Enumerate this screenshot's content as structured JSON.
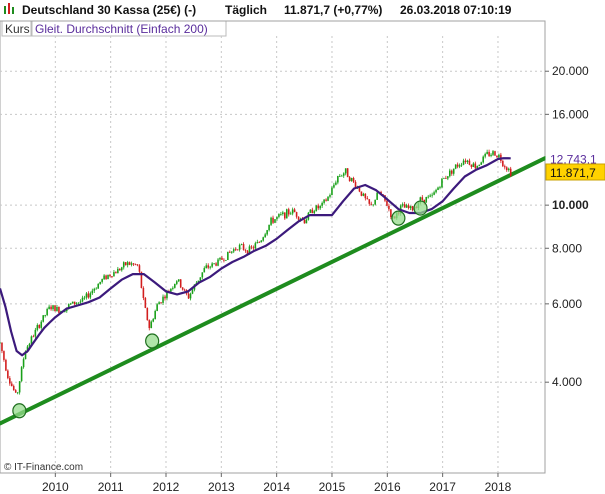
{
  "header": {
    "instrument": "Deutschland 30 Kassa (25€) (-)",
    "interval": "Täglich",
    "quote": "11.871,7 (+0,77%)",
    "datetime": "26.03.2018 07:10:19"
  },
  "legend": {
    "kurs_label": "Kurs",
    "sma_label": "Gleit. Durchschnitt (Einfach 200)"
  },
  "watermark": "© IT-Finance.com",
  "colors": {
    "price_up": "#19a019",
    "price_down": "#d21e1e",
    "sma": "#3c1a7c",
    "trendline": "#1e8c1e",
    "last_price_bg": "#ffd200",
    "grid": "#c8c8c8"
  },
  "chart_data": {
    "type": "line",
    "title": "Deutschland 30 Kassa (25€) (-)",
    "y_scale": "log",
    "ylim": [
      2500,
      24000
    ],
    "y_ticks": [
      {
        "value": 4000,
        "label": "4.000"
      },
      {
        "value": 6000,
        "label": "6.000"
      },
      {
        "value": 8000,
        "label": "8.000"
      },
      {
        "value": 10000,
        "label": "10.000"
      },
      {
        "value": 16000,
        "label": "16.000"
      },
      {
        "value": 20000,
        "label": "20.000"
      }
    ],
    "xlim": [
      2009.0,
      2018.85
    ],
    "x_ticks": [
      {
        "value": 2010,
        "label": "2010"
      },
      {
        "value": 2011,
        "label": "2011"
      },
      {
        "value": 2012,
        "label": "2012"
      },
      {
        "value": 2013,
        "label": "2013"
      },
      {
        "value": 2014,
        "label": "2014"
      },
      {
        "value": 2015,
        "label": "2015"
      },
      {
        "value": 2016,
        "label": "2016"
      },
      {
        "value": 2017,
        "label": "2017"
      },
      {
        "value": 2018,
        "label": "2018"
      }
    ],
    "grid": true,
    "series": [
      {
        "name": "Kurs",
        "style": "candlestick",
        "x": [
          2009.0,
          2009.15,
          2009.3,
          2009.45,
          2009.6,
          2009.75,
          2009.9,
          2010.1,
          2010.3,
          2010.5,
          2010.7,
          2010.9,
          2011.1,
          2011.3,
          2011.5,
          2011.6,
          2011.7,
          2011.85,
          2012.0,
          2012.2,
          2012.4,
          2012.55,
          2012.7,
          2012.9,
          2013.1,
          2013.3,
          2013.5,
          2013.7,
          2013.9,
          2014.1,
          2014.3,
          2014.5,
          2014.65,
          2014.8,
          2014.95,
          2015.1,
          2015.25,
          2015.35,
          2015.5,
          2015.6,
          2015.7,
          2015.85,
          2016.0,
          2016.1,
          2016.25,
          2016.45,
          2016.6,
          2016.8,
          2017.0,
          2017.2,
          2017.4,
          2017.6,
          2017.8,
          2017.9,
          2018.0,
          2018.1,
          2018.23
        ],
        "values": [
          4900,
          4100,
          3700,
          4700,
          5100,
          5500,
          5900,
          5800,
          6000,
          6100,
          6500,
          6900,
          7100,
          7400,
          7300,
          6000,
          5300,
          6000,
          6300,
          6800,
          6200,
          6700,
          7200,
          7400,
          7700,
          8100,
          7900,
          8300,
          9200,
          9500,
          9700,
          9200,
          9800,
          9900,
          10500,
          11600,
          11900,
          11400,
          10800,
          10300,
          9900,
          10700,
          10000,
          9300,
          9900,
          9800,
          10300,
          10400,
          11400,
          12100,
          12700,
          12200,
          13000,
          13100,
          13000,
          12400,
          11872
        ]
      },
      {
        "name": "Gleit. Durchschnitt (Einfach 200)",
        "style": "line",
        "x": [
          2009.0,
          2009.1,
          2009.2,
          2009.3,
          2009.4,
          2009.5,
          2009.6,
          2009.7,
          2009.8,
          2009.9,
          2010.0,
          2010.2,
          2010.4,
          2010.6,
          2010.8,
          2011.0,
          2011.2,
          2011.4,
          2011.6,
          2011.8,
          2012.0,
          2012.2,
          2012.4,
          2012.6,
          2012.8,
          2013.0,
          2013.2,
          2013.4,
          2013.6,
          2013.8,
          2014.0,
          2014.2,
          2014.4,
          2014.6,
          2014.8,
          2015.0,
          2015.2,
          2015.4,
          2015.6,
          2015.8,
          2016.0,
          2016.2,
          2016.4,
          2016.6,
          2016.8,
          2017.0,
          2017.2,
          2017.4,
          2017.6,
          2017.8,
          2018.0,
          2018.1,
          2018.23
        ],
        "values": [
          6500,
          5900,
          5200,
          4700,
          4600,
          4700,
          4900,
          5100,
          5300,
          5450,
          5600,
          5850,
          5950,
          6050,
          6200,
          6500,
          6800,
          7000,
          7000,
          6700,
          6400,
          6300,
          6400,
          6700,
          6900,
          7200,
          7450,
          7650,
          7900,
          8100,
          8400,
          8800,
          9200,
          9500,
          9500,
          9500,
          10200,
          10900,
          11100,
          10800,
          10300,
          9800,
          9600,
          9600,
          9800,
          10200,
          10900,
          11600,
          12000,
          12300,
          12700,
          12750,
          12743
        ]
      },
      {
        "name": "Trendlinie",
        "style": "line",
        "x": [
          2009.0,
          2018.85
        ],
        "values": [
          3230,
          12750
        ]
      }
    ],
    "annotations": [
      {
        "type": "support-touch",
        "x": 2009.35,
        "value": 3450
      },
      {
        "type": "support-touch",
        "x": 2011.75,
        "value": 4950
      },
      {
        "type": "support-touch",
        "x": 2016.2,
        "value": 9350
      },
      {
        "type": "support-touch",
        "x": 2016.6,
        "value": 9850
      }
    ],
    "last_value_labels": [
      {
        "series": "Gleit. Durchschnitt (Einfach 200)",
        "value": 12743.1,
        "label": "12.743,1"
      },
      {
        "series": "Kurs",
        "value": 11871.7,
        "label": "11.871,7"
      }
    ]
  }
}
